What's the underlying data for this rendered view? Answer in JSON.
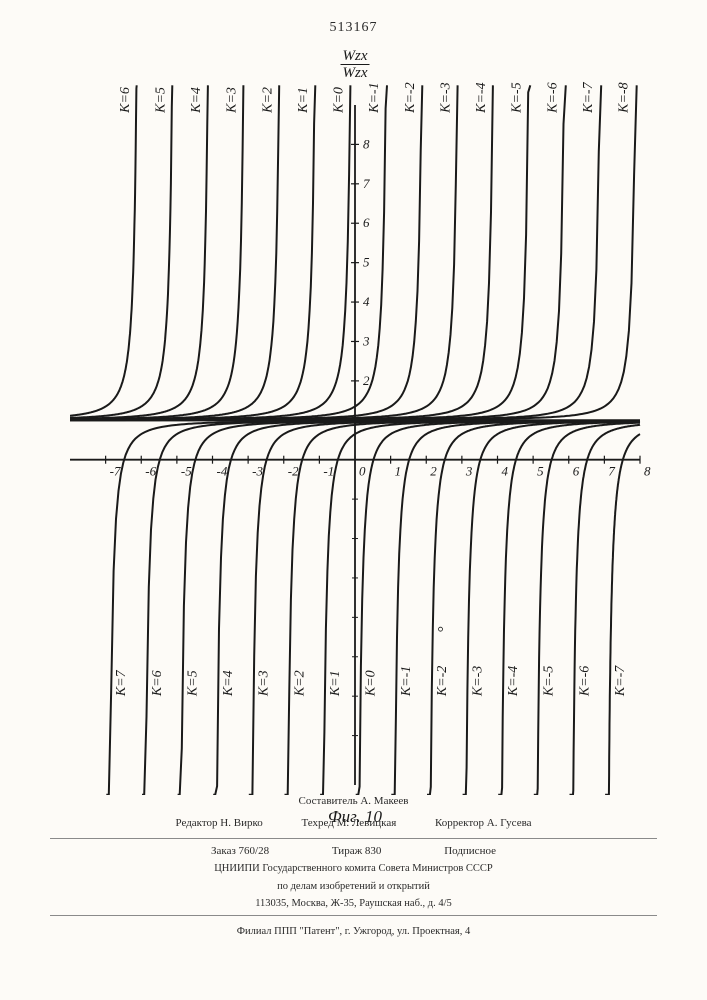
{
  "document_number": "513167",
  "chart": {
    "type": "line",
    "axis_label_numerator": "Wzx",
    "axis_label_denominator": "Wzx",
    "caption": "Фиг. 10",
    "xlim": [
      -8,
      8
    ],
    "ylim": [
      -8,
      9
    ],
    "x_axis_y": 0,
    "horizontal_asymptote_y": 1,
    "x_ticks": [
      -7,
      -6,
      -5,
      -4,
      -3,
      -2,
      -1,
      0,
      1,
      2,
      3,
      4,
      5,
      6,
      7,
      8
    ],
    "y_ticks_positive": [
      2,
      3,
      4,
      5,
      6,
      7,
      8
    ],
    "stroke_color": "#1a1a1a",
    "label_color": "#1a1a1a",
    "background": "#fdfbf7",
    "upper_family": {
      "k_values": [
        6,
        5,
        4,
        3,
        2,
        1,
        0,
        -1,
        -2,
        -3,
        -4,
        -5,
        -6,
        -7,
        -8
      ],
      "label_y_top": 8.8,
      "description": "curves approach y=1 from above as x→−∞, vertical asymptote shifts right one unit per decreasing k"
    },
    "lower_family": {
      "k_values": [
        7,
        6,
        5,
        4,
        3,
        2,
        1,
        0,
        -1,
        -2,
        -3,
        -4,
        -5,
        -6,
        -7
      ],
      "label_y_bottom": -6.0,
      "description": "curves approach y=1 from below as x→+∞, vertical asymptote shifts right one unit per decreasing k"
    }
  },
  "footer": {
    "compiler": "Составитель А. Макеев",
    "editor": "Редактор Н. Вирко",
    "techred": "Техред М. Левицкая",
    "corrector": "Корректор А. Гусева",
    "order": "Заказ 760/28",
    "circulation": "Тираж 830",
    "subscription": "Подписное",
    "org1": "ЦНИИПИ Государственного комита Совета Министров СССР",
    "org2": "по делам изобретений и открытий",
    "address": "113035, Москва, Ж-35, Раушская наб., д. 4/5",
    "branch": "Филиал ППП \"Патент\", г. Ужгород, ул. Проектная, 4"
  }
}
